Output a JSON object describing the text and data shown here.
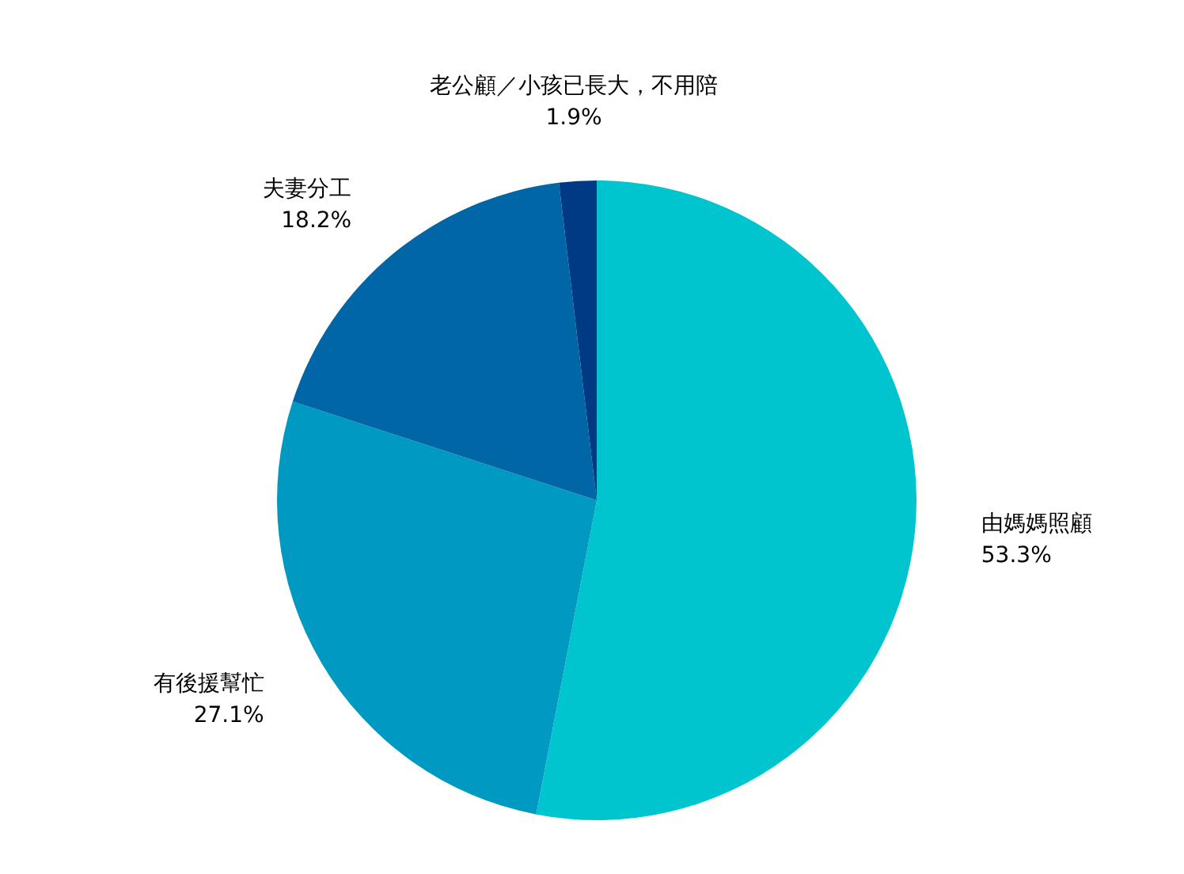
{
  "chart_data": {
    "type": "pie",
    "categories": [
      "由媽媽照顧",
      "有後援幫忙",
      "夫妻分工",
      "老公顧／小孩已長大，不用陪"
    ],
    "values": [
      53.3,
      27.1,
      18.2,
      1.9
    ],
    "colors": [
      "#00c5cf",
      "#0099c1",
      "#0066a6",
      "#003a84"
    ],
    "value_labels": [
      "53.3%",
      "27.1%",
      "18.2%",
      "1.9%"
    ]
  }
}
